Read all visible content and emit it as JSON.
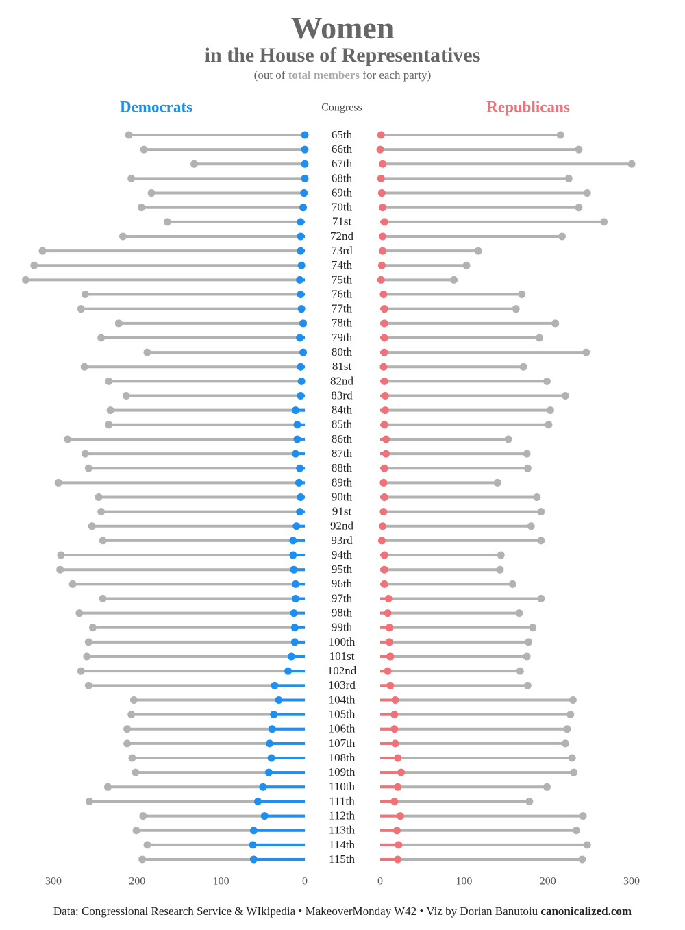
{
  "chart_data": {
    "type": "lollipop",
    "title": "Women",
    "subtitle": "in the House of Representatives",
    "note": [
      "(out of",
      "total members",
      "for each party)"
    ],
    "category_label": "Congress",
    "footer": [
      "Data: Congressional Research Service & WIkipedia • MakeoverMonday W42 • Viz by Dorian Banutoiu",
      "canonicalized.com"
    ],
    "total_color": "#b1b3b3",
    "categories": [
      "65th",
      "66th",
      "67th",
      "68th",
      "69th",
      "70th",
      "71st",
      "72nd",
      "73rd",
      "74th",
      "75th",
      "76th",
      "77th",
      "78th",
      "79th",
      "80th",
      "81st",
      "82nd",
      "83rd",
      "84th",
      "85th",
      "86th",
      "87th",
      "88th",
      "89th",
      "90th",
      "91st",
      "92nd",
      "93rd",
      "94th",
      "95th",
      "96th",
      "97th",
      "98th",
      "99th",
      "100th",
      "101st",
      "102nd",
      "103rd",
      "104th",
      "105th",
      "106th",
      "107th",
      "108th",
      "109th",
      "110th",
      "111th",
      "112th",
      "113th",
      "114th",
      "115th"
    ],
    "series": [
      {
        "name": "Democrats",
        "color": "#1e8ff0",
        "side": "left",
        "women": [
          0,
          0,
          0,
          0,
          1,
          2,
          5,
          5,
          5,
          4,
          6,
          5,
          4,
          2,
          6,
          2,
          5,
          4,
          5,
          11,
          9,
          9,
          11,
          6,
          7,
          5,
          6,
          10,
          14,
          14,
          13,
          11,
          11,
          13,
          12,
          12,
          16,
          20,
          36,
          31,
          37,
          39,
          42,
          40,
          43,
          50,
          56,
          48,
          61,
          62,
          61
        ],
        "total": [
          210,
          192,
          132,
          207,
          183,
          195,
          164,
          217,
          313,
          323,
          333,
          262,
          267,
          222,
          243,
          188,
          263,
          234,
          213,
          232,
          234,
          283,
          262,
          258,
          294,
          246,
          243,
          254,
          241,
          291,
          292,
          277,
          241,
          269,
          253,
          258,
          260,
          267,
          258,
          204,
          207,
          212,
          212,
          206,
          202,
          235,
          257,
          193,
          201,
          188,
          194
        ]
      },
      {
        "name": "Republicans",
        "color": "#f07177",
        "side": "right",
        "women": [
          1,
          0,
          3,
          1,
          2,
          3,
          5,
          3,
          3,
          2,
          1,
          4,
          5,
          5,
          5,
          5,
          4,
          5,
          6,
          6,
          5,
          7,
          7,
          5,
          4,
          5,
          4,
          3,
          2,
          5,
          5,
          5,
          10,
          9,
          11,
          11,
          12,
          9,
          12,
          18,
          17,
          17,
          18,
          21,
          25,
          21,
          17,
          24,
          20,
          22,
          21
        ],
        "total": [
          215,
          237,
          300,
          225,
          247,
          237,
          267,
          217,
          117,
          103,
          88,
          169,
          162,
          209,
          190,
          246,
          171,
          199,
          221,
          203,
          201,
          153,
          175,
          176,
          140,
          187,
          192,
          180,
          192,
          144,
          143,
          158,
          192,
          166,
          182,
          177,
          175,
          167,
          176,
          230,
          227,
          223,
          221,
          229,
          231,
          199,
          178,
          242,
          234,
          247,
          241
        ]
      }
    ],
    "xlim": [
      0,
      340
    ],
    "xticks": [
      0,
      100,
      200,
      300
    ]
  }
}
